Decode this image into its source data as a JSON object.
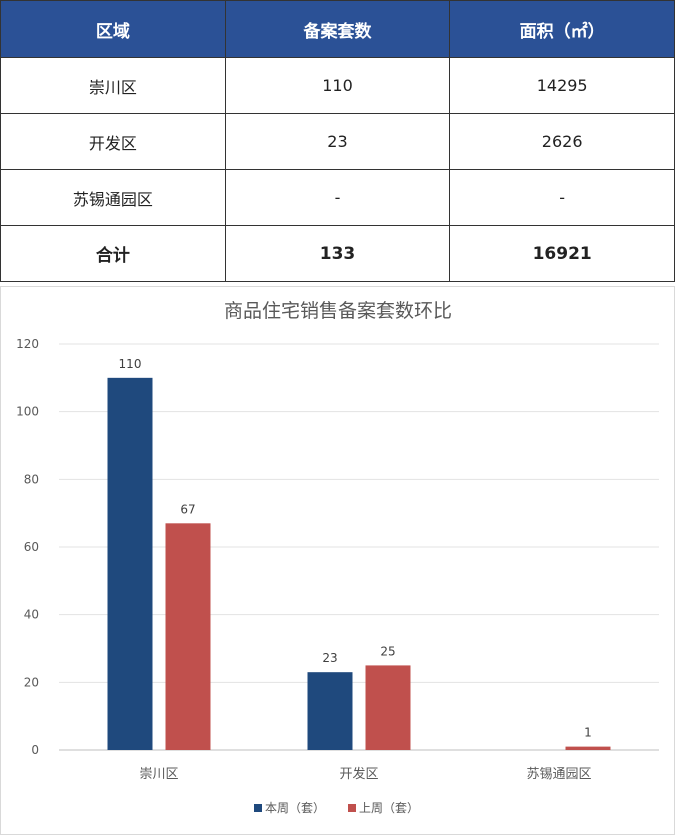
{
  "table": {
    "headers": [
      "区域",
      "备案套数",
      "面积（㎡）"
    ],
    "rows": [
      [
        "崇川区",
        "110",
        "14295"
      ],
      [
        "开发区",
        "23",
        "2626"
      ],
      [
        "苏锡通园区",
        "-",
        "-"
      ]
    ],
    "total": [
      "合计",
      "133",
      "16921"
    ]
  },
  "chart_data": {
    "type": "bar",
    "title": "商品住宅销售备案套数环比",
    "categories": [
      "崇川区",
      "开发区",
      "苏锡通园区"
    ],
    "series": [
      {
        "name": "本周（套）",
        "values": [
          110,
          23,
          null
        ],
        "color": "#1f497d"
      },
      {
        "name": "上周（套）",
        "values": [
          67,
          25,
          1
        ],
        "color": "#c0504d"
      }
    ],
    "yticks": [
      "0",
      "20",
      "40",
      "60",
      "80",
      "100",
      "120"
    ],
    "ylim": [
      0,
      120
    ],
    "grid": true,
    "legend": "bottom"
  }
}
